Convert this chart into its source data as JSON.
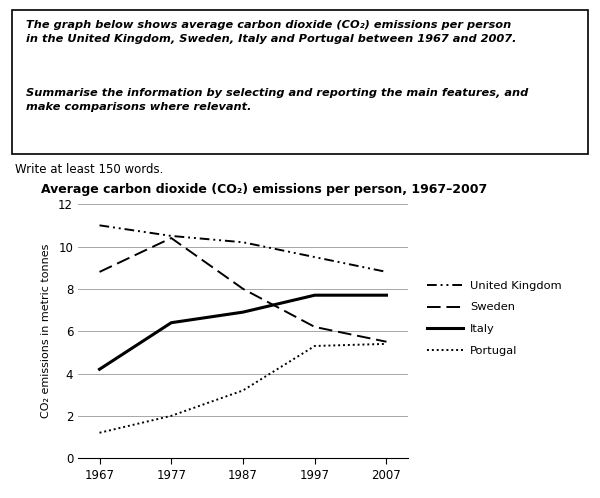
{
  "title": "Average carbon dioxide (CO₂) emissions per person, 1967–2007",
  "ylabel": "CO₂ emissions in metric tonnes",
  "box_text_para1": "The graph below shows average carbon dioxide (CO₂) emissions per person\nin the United Kingdom, Sweden, Italy and Portugal between 1967 and 2007.",
  "box_text_para2": "Summarise the information by selecting and reporting the main features, and\nmake comparisons where relevant.",
  "write_text": "Write at least 150 words.",
  "years": [
    1967,
    1977,
    1987,
    1997,
    2007
  ],
  "united_kingdom": [
    11.0,
    10.5,
    10.2,
    9.5,
    8.8
  ],
  "sweden": [
    8.8,
    10.4,
    8.0,
    6.2,
    5.5
  ],
  "italy": [
    4.2,
    6.4,
    6.9,
    7.7,
    7.7
  ],
  "portugal": [
    1.2,
    2.0,
    3.2,
    5.3,
    5.4
  ],
  "ylim": [
    0,
    12
  ],
  "yticks": [
    0,
    2,
    4,
    6,
    8,
    10,
    12
  ],
  "xticks": [
    1967,
    1977,
    1987,
    1997,
    2007
  ],
  "legend_labels": [
    "United Kingdom",
    "Sweden",
    "Italy",
    "Portugal"
  ],
  "background_color": "#ffffff",
  "line_color": "#000000",
  "grid_color": "#999999"
}
